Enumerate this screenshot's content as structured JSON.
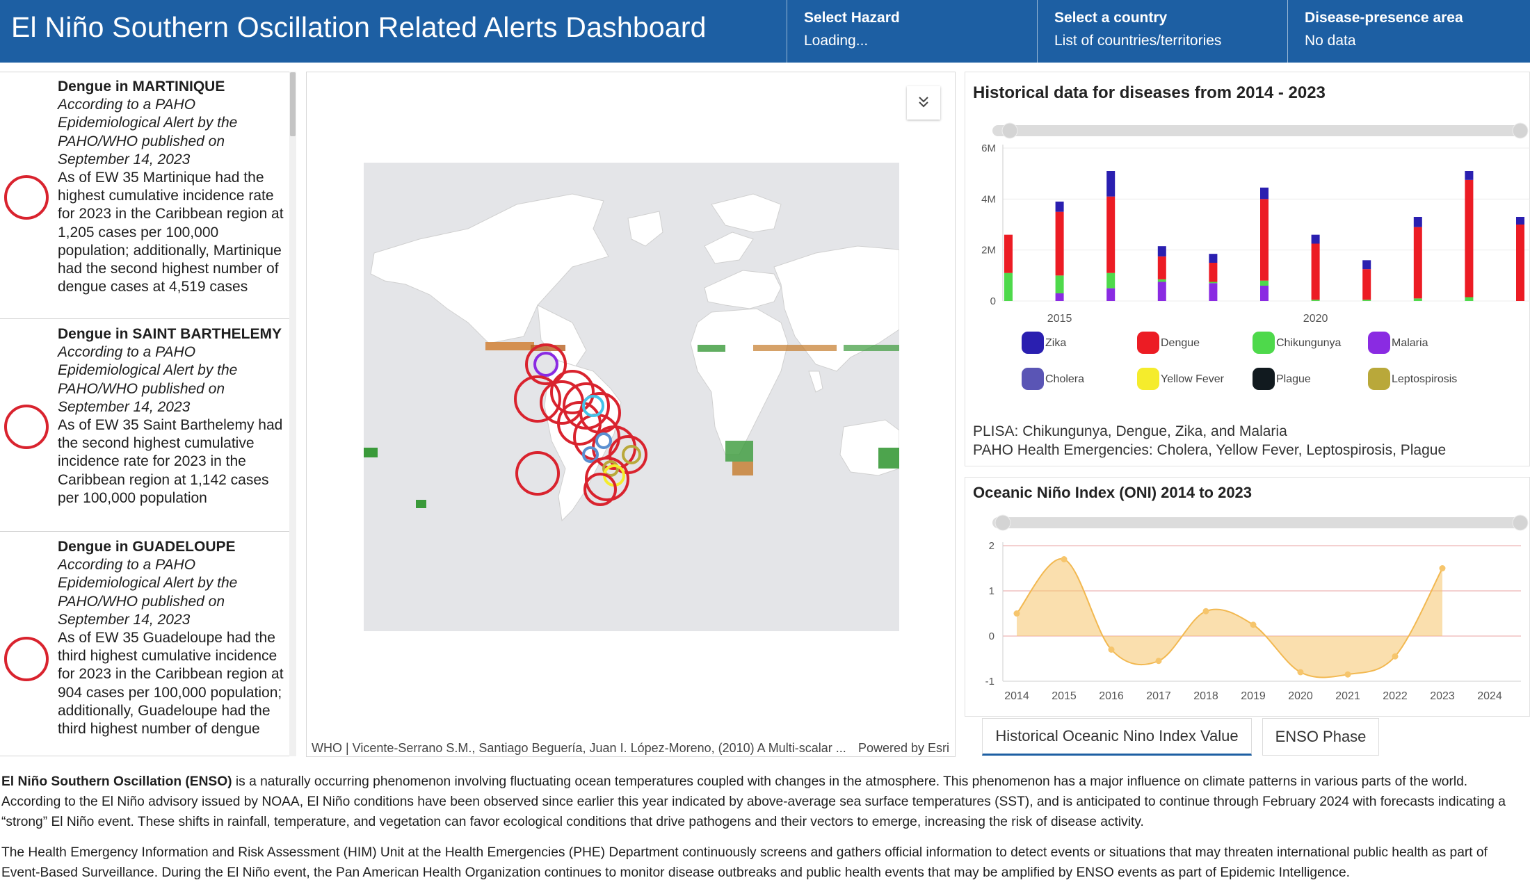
{
  "header": {
    "title": "El Niño Southern Oscillation Related Alerts Dashboard",
    "hazard": {
      "label": "Select Hazard",
      "value": "Loading..."
    },
    "country": {
      "label": "Select a country",
      "value": "List of countries/territories"
    },
    "area": {
      "label": "Disease-presence area",
      "value": "No data"
    }
  },
  "alerts": [
    {
      "title": "Dengue in MARTINIQUE",
      "source": "According to a PAHO Epidemiological Alert by the PAHO/WHO published on September 14, 2023",
      "body": "As of EW 35 Martinique had the highest cumulative incidence rate for 2023 in the Caribbean region at 1,205 cases per 100,000 population; additionally, Martinique had the second highest number of dengue cases at 4,519 cases"
    },
    {
      "title": "Dengue in SAINT BARTHELEMY",
      "source": "According to a PAHO Epidemiological Alert by the PAHO/WHO published on September 14, 2023",
      "body": "As of EW 35 Saint Barthelemy had the second highest cumulative incidence rate for 2023 in the Caribbean region at 1,142 cases per 100,000 population"
    },
    {
      "title": "Dengue in GUADELOUPE",
      "source": "According to a PAHO Epidemiological Alert by the PAHO/WHO published on September 14, 2023",
      "body": "As of EW 35 Guadeloupe had the third highest cumulative incidence for 2023 in the Caribbean region at 904 cases per 100,000 population; additionally, Guadeloupe had the third highest number of dengue"
    }
  ],
  "map": {
    "attribution": "WHO | Vicente-Serrano S.M., Santiago Beguería, Juan I. López-Moreno, (2010) A Multi-scalar ...",
    "powered": "Powered by Esri"
  },
  "colors": {
    "header": "#1d5fa3",
    "Zika": "#2a1fb0",
    "Dengue": "#ec1c24",
    "Chikungunya": "#4ed94b",
    "Malaria": "#8a2be2",
    "Cholera": "#5a55b5",
    "Yellow Fever": "#f5ec2c",
    "Plague": "#111a1f",
    "Leptospirosis": "#b9a83a",
    "oni": "#f6c56c"
  },
  "historical": {
    "title": "Historical data for diseases from 2014 - 2023",
    "footnotes": [
      "PLISA: Chikungunya, Dengue, Zika, and Malaria",
      "PAHO Health Emergencies: Cholera, Yellow Fever, Leptospirosis, Plague"
    ]
  },
  "oni": {
    "title": "Oceanic Niño Index (ONI) 2014 to 2023",
    "tabs": [
      "Historical Oceanic Nino Index Value",
      "ENSO Phase"
    ]
  },
  "chart_data": [
    {
      "type": "bar",
      "stacked": true,
      "title": "Historical data for diseases from 2014 - 2023",
      "x": [
        2014,
        2015,
        2016,
        2017,
        2018,
        2019,
        2020,
        2021,
        2022,
        2023,
        2024
      ],
      "x_tick_labels": [
        "2015",
        "2020"
      ],
      "y_tick_labels": [
        "0",
        "2M",
        "4M",
        "6M"
      ],
      "ylim": [
        0,
        6000000
      ],
      "legend": [
        "Zika",
        "Dengue",
        "Chikungunya",
        "Malaria",
        "Cholera",
        "Yellow Fever",
        "Plague",
        "Leptospirosis"
      ],
      "series": [
        {
          "name": "Malaria",
          "values": [
            0,
            300000,
            500000,
            750000,
            700000,
            600000,
            0,
            0,
            0,
            0,
            0
          ]
        },
        {
          "name": "Chikungunya",
          "values": [
            1100000,
            700000,
            600000,
            100000,
            50000,
            200000,
            50000,
            50000,
            100000,
            150000,
            0
          ]
        },
        {
          "name": "Dengue",
          "values": [
            1500000,
            2500000,
            3000000,
            900000,
            750000,
            3200000,
            2200000,
            1200000,
            2800000,
            4600000,
            3000000
          ]
        },
        {
          "name": "Zika",
          "values": [
            0,
            400000,
            1000000,
            400000,
            350000,
            450000,
            350000,
            350000,
            400000,
            350000,
            300000
          ]
        }
      ]
    },
    {
      "type": "area",
      "title": "Oceanic Niño Index (ONI) 2014 to 2023",
      "x": [
        2014,
        2015,
        2016,
        2017,
        2018,
        2019,
        2020,
        2021,
        2022,
        2023
      ],
      "x_tick_labels": [
        "2014",
        "2015",
        "2016",
        "2017",
        "2018",
        "2019",
        "2020",
        "2021",
        "2022",
        "2023",
        "2024"
      ],
      "y_tick_labels": [
        "2",
        "1",
        "0",
        "-1"
      ],
      "ylim": [
        -1,
        2
      ],
      "values": [
        0.5,
        1.7,
        -0.3,
        -0.55,
        0.55,
        0.25,
        -0.8,
        -0.85,
        -0.45,
        1.5
      ]
    }
  ],
  "description": {
    "p1_bold": "El Niño Southern Oscillation (ENSO)",
    "p1": " is a naturally occurring phenomenon involving fluctuating ocean temperatures coupled with changes in the atmosphere. This phenomenon has a major influence on climate patterns in various parts of the world. According to the El Niño advisory issued by NOAA, El Niño conditions have been observed since earlier this year indicated by above-average sea surface temperatures (SST), and is anticipated to continue through February 2024 with forecasts indicating a “strong” El Niño event. These shifts in rainfall, temperature, and vegetation can favor ecological conditions that drive pathogens and their vectors to emerge, increasing the risk of disease activity.",
    "p2": "The Health Emergency Information and Risk Assessment (HIM) Unit at the Health Emergencies (PHE) Department continuously screens and gathers official information to detect events or situations that may threaten international public health as part of Event-Based Surveillance. During the El Niño event, the Pan American Health Organization continues to monitor disease outbreaks and public health events that may be amplified by ENSO events as part of Epidemic Intelligence."
  }
}
